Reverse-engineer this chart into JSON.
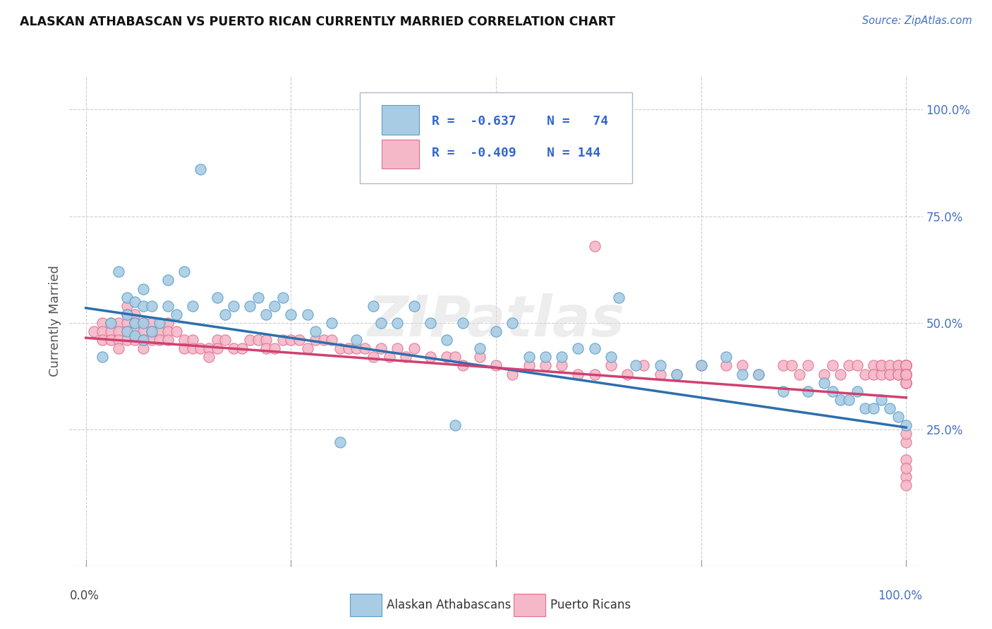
{
  "title": "ALASKAN ATHABASCAN VS PUERTO RICAN CURRENTLY MARRIED CORRELATION CHART",
  "source": "Source: ZipAtlas.com",
  "ylabel": "Currently Married",
  "legend_label1": "Alaskan Athabascans",
  "legend_label2": "Puerto Ricans",
  "color_blue_fill": "#a8cce4",
  "color_pink_fill": "#f4b8c8",
  "color_blue_edge": "#5b9dc9",
  "color_pink_edge": "#e07090",
  "color_blue_line": "#2c6fad",
  "color_pink_line": "#d04070",
  "color_legend_R": "#3366cc",
  "color_right_tick": "#4472c4",
  "background_color": "#ffffff",
  "grid_color": "#cccccc",
  "blue_x": [
    0.02,
    0.03,
    0.04,
    0.05,
    0.05,
    0.05,
    0.06,
    0.06,
    0.06,
    0.07,
    0.07,
    0.07,
    0.07,
    0.08,
    0.08,
    0.09,
    0.1,
    0.1,
    0.11,
    0.12,
    0.13,
    0.14,
    0.16,
    0.17,
    0.18,
    0.2,
    0.21,
    0.22,
    0.23,
    0.24,
    0.25,
    0.27,
    0.28,
    0.3,
    0.31,
    0.33,
    0.35,
    0.36,
    0.38,
    0.4,
    0.42,
    0.44,
    0.45,
    0.46,
    0.48,
    0.5,
    0.52,
    0.54,
    0.56,
    0.58,
    0.6,
    0.62,
    0.64,
    0.65,
    0.67,
    0.7,
    0.72,
    0.75,
    0.78,
    0.8,
    0.82,
    0.85,
    0.88,
    0.9,
    0.91,
    0.92,
    0.93,
    0.94,
    0.95,
    0.96,
    0.97,
    0.98,
    0.99,
    1.0
  ],
  "blue_y": [
    0.42,
    0.5,
    0.62,
    0.56,
    0.52,
    0.48,
    0.55,
    0.5,
    0.47,
    0.58,
    0.54,
    0.5,
    0.46,
    0.54,
    0.48,
    0.5,
    0.6,
    0.54,
    0.52,
    0.62,
    0.54,
    0.86,
    0.56,
    0.52,
    0.54,
    0.54,
    0.56,
    0.52,
    0.54,
    0.56,
    0.52,
    0.52,
    0.48,
    0.5,
    0.22,
    0.46,
    0.54,
    0.5,
    0.5,
    0.54,
    0.5,
    0.46,
    0.26,
    0.5,
    0.44,
    0.48,
    0.5,
    0.42,
    0.42,
    0.42,
    0.44,
    0.44,
    0.42,
    0.56,
    0.4,
    0.4,
    0.38,
    0.4,
    0.42,
    0.38,
    0.38,
    0.34,
    0.34,
    0.36,
    0.34,
    0.32,
    0.32,
    0.34,
    0.3,
    0.3,
    0.32,
    0.3,
    0.28,
    0.26
  ],
  "pink_x": [
    0.01,
    0.02,
    0.02,
    0.02,
    0.03,
    0.03,
    0.03,
    0.04,
    0.04,
    0.04,
    0.04,
    0.05,
    0.05,
    0.05,
    0.05,
    0.05,
    0.06,
    0.06,
    0.06,
    0.06,
    0.07,
    0.07,
    0.07,
    0.07,
    0.08,
    0.08,
    0.08,
    0.09,
    0.09,
    0.1,
    0.1,
    0.1,
    0.11,
    0.12,
    0.12,
    0.13,
    0.13,
    0.14,
    0.15,
    0.15,
    0.16,
    0.16,
    0.17,
    0.18,
    0.19,
    0.2,
    0.21,
    0.22,
    0.22,
    0.23,
    0.24,
    0.25,
    0.26,
    0.27,
    0.28,
    0.29,
    0.3,
    0.31,
    0.32,
    0.33,
    0.34,
    0.35,
    0.36,
    0.37,
    0.38,
    0.39,
    0.4,
    0.42,
    0.44,
    0.45,
    0.46,
    0.48,
    0.5,
    0.52,
    0.54,
    0.56,
    0.58,
    0.6,
    0.62,
    0.62,
    0.64,
    0.66,
    0.68,
    0.7,
    0.72,
    0.75,
    0.78,
    0.8,
    0.82,
    0.85,
    0.86,
    0.87,
    0.88,
    0.9,
    0.91,
    0.92,
    0.93,
    0.94,
    0.95,
    0.96,
    0.96,
    0.97,
    0.97,
    0.97,
    0.98,
    0.98,
    0.98,
    0.99,
    0.99,
    0.99,
    0.99,
    1.0,
    1.0,
    1.0,
    1.0,
    1.0,
    1.0,
    1.0,
    1.0,
    1.0,
    1.0,
    1.0,
    1.0,
    1.0,
    1.0,
    1.0,
    1.0,
    1.0,
    1.0,
    1.0,
    1.0,
    1.0,
    1.0,
    1.0,
    1.0,
    1.0,
    1.0,
    1.0,
    1.0,
    1.0,
    1.0,
    1.0,
    1.0,
    1.0
  ],
  "pink_y": [
    0.48,
    0.5,
    0.48,
    0.46,
    0.5,
    0.48,
    0.46,
    0.5,
    0.48,
    0.46,
    0.44,
    0.54,
    0.52,
    0.5,
    0.48,
    0.46,
    0.52,
    0.5,
    0.48,
    0.46,
    0.5,
    0.48,
    0.46,
    0.44,
    0.5,
    0.48,
    0.46,
    0.48,
    0.46,
    0.5,
    0.48,
    0.46,
    0.48,
    0.46,
    0.44,
    0.46,
    0.44,
    0.44,
    0.44,
    0.42,
    0.46,
    0.44,
    0.46,
    0.44,
    0.44,
    0.46,
    0.46,
    0.46,
    0.44,
    0.44,
    0.46,
    0.46,
    0.46,
    0.44,
    0.46,
    0.46,
    0.46,
    0.44,
    0.44,
    0.44,
    0.44,
    0.42,
    0.44,
    0.42,
    0.44,
    0.42,
    0.44,
    0.42,
    0.42,
    0.42,
    0.4,
    0.42,
    0.4,
    0.38,
    0.4,
    0.4,
    0.4,
    0.38,
    0.38,
    0.68,
    0.4,
    0.38,
    0.4,
    0.38,
    0.38,
    0.4,
    0.4,
    0.4,
    0.38,
    0.4,
    0.4,
    0.38,
    0.4,
    0.38,
    0.4,
    0.38,
    0.4,
    0.4,
    0.38,
    0.4,
    0.38,
    0.4,
    0.38,
    0.4,
    0.38,
    0.4,
    0.38,
    0.4,
    0.38,
    0.4,
    0.38,
    0.4,
    0.38,
    0.4,
    0.38,
    0.4,
    0.38,
    0.4,
    0.38,
    0.36,
    0.4,
    0.38,
    0.4,
    0.38,
    0.4,
    0.38,
    0.4,
    0.38,
    0.18,
    0.22,
    0.14,
    0.24,
    0.12,
    0.16,
    0.36,
    0.38,
    0.36,
    0.38,
    0.36,
    0.38,
    0.36,
    0.38,
    0.36,
    0.38
  ],
  "blue_line_x0": 0.0,
  "blue_line_x1": 1.0,
  "blue_line_y0": 0.535,
  "blue_line_y1": 0.255,
  "pink_line_x0": 0.0,
  "pink_line_x1": 1.0,
  "pink_line_y0": 0.465,
  "pink_line_y1": 0.325,
  "xlim": [
    0.0,
    1.0
  ],
  "ylim": [
    -0.07,
    1.08
  ],
  "ytick_vals": [
    0.25,
    0.5,
    0.75,
    1.0
  ],
  "ytick_labels": [
    "25.0%",
    "50.0%",
    "75.0%",
    "100.0%"
  ],
  "xtick_vals": [
    0.0,
    0.25,
    0.5,
    0.75,
    1.0
  ]
}
